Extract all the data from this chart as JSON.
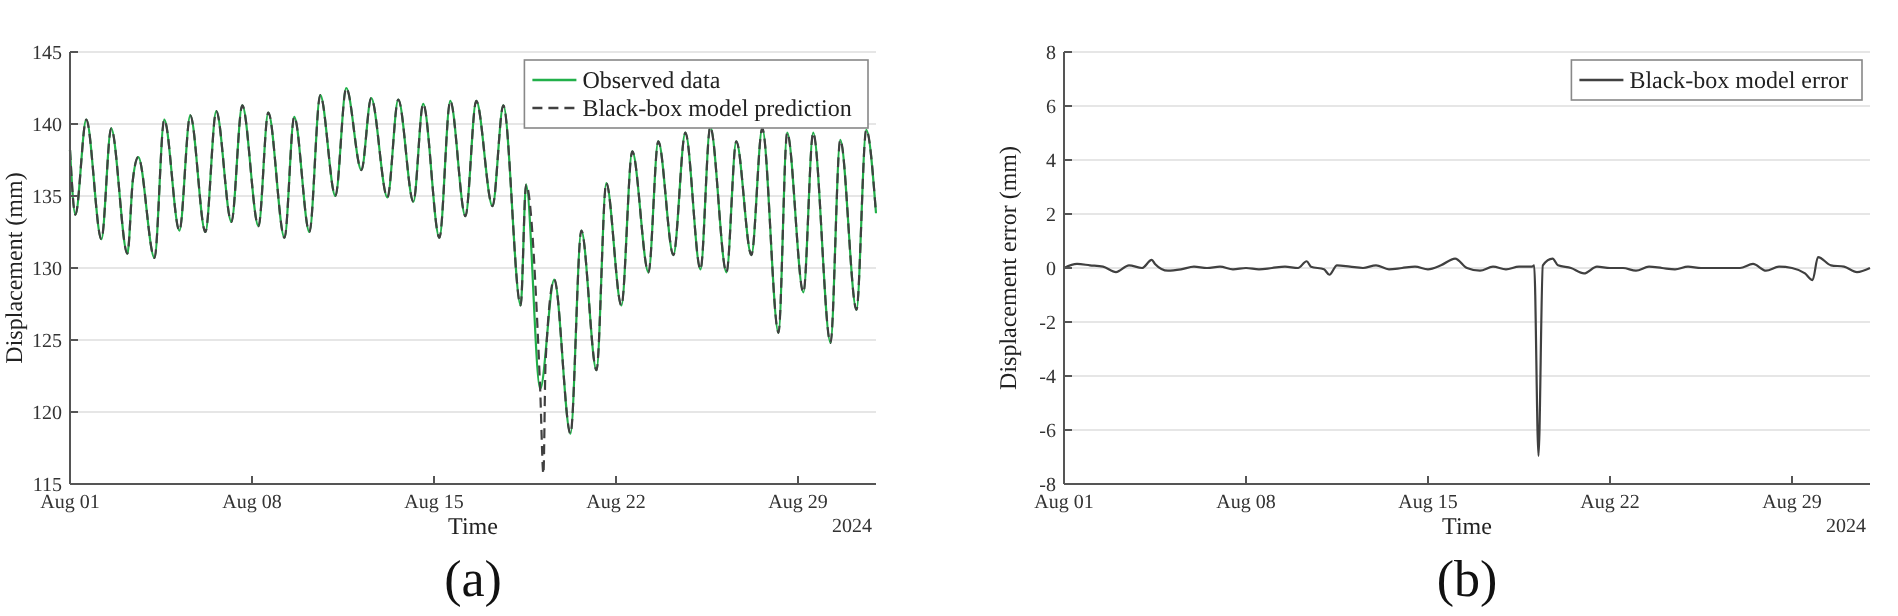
{
  "chart_data": [
    {
      "type": "line",
      "title": "(a)",
      "xlabel": "Time",
      "ylabel": "Displacement (mm)",
      "annotations": [
        "2024"
      ],
      "xlim": [
        "2024-08-01",
        "2024-09-01"
      ],
      "xticks": [
        {
          "value": "2024-08-01",
          "label": "Aug 01"
        },
        {
          "value": "2024-08-08",
          "label": "Aug 08"
        },
        {
          "value": "2024-08-15",
          "label": "Aug 15"
        },
        {
          "value": "2024-08-22",
          "label": "Aug 22"
        },
        {
          "value": "2024-08-29",
          "label": "Aug 29"
        }
      ],
      "ylim": [
        115,
        145
      ],
      "yticks": [
        115,
        120,
        125,
        130,
        135,
        140,
        145
      ],
      "grid": "y",
      "legend": "top right",
      "series": [
        {
          "name": "Observed data",
          "color": "#22b04a",
          "line_style": "solid",
          "x": [
            "2024-08-01T00:00",
            "2024-08-01T05:00",
            "2024-08-01T15:00",
            "2024-08-02T05:00",
            "2024-08-02T14:00",
            "2024-08-03T05:00",
            "2024-08-03T10:00",
            "2024-08-03T15:00",
            "2024-08-04T06:00",
            "2024-08-04T15:00",
            "2024-08-05T05:00",
            "2024-08-05T15:00",
            "2024-08-06T05:00",
            "2024-08-06T15:00",
            "2024-08-07T05:00",
            "2024-08-07T15:00",
            "2024-08-08T06:00",
            "2024-08-08T15:00",
            "2024-08-09T06:00",
            "2024-08-09T15:00",
            "2024-08-10T05:00",
            "2024-08-10T15:00",
            "2024-08-11T05:00",
            "2024-08-11T15:00",
            "2024-08-12T05:00",
            "2024-08-12T14:00",
            "2024-08-13T05:00",
            "2024-08-13T15:00",
            "2024-08-14T05:00",
            "2024-08-14T14:00",
            "2024-08-15T05:00",
            "2024-08-15T15:00",
            "2024-08-16T05:00",
            "2024-08-16T15:00",
            "2024-08-17T06:00",
            "2024-08-17T16:00",
            "2024-08-18T08:00",
            "2024-08-18T13:00",
            "2024-08-19T02:00",
            "2024-08-19T15:00",
            "2024-08-20T06:00",
            "2024-08-20T16:00",
            "2024-08-21T06:00",
            "2024-08-21T15:00",
            "2024-08-22T05:00",
            "2024-08-22T15:00",
            "2024-08-23T06:00",
            "2024-08-23T15:00",
            "2024-08-24T05:00",
            "2024-08-24T16:00",
            "2024-08-25T06:00",
            "2024-08-25T15:00",
            "2024-08-26T06:00",
            "2024-08-26T15:00",
            "2024-08-27T05:00",
            "2024-08-27T15:00",
            "2024-08-28T06:00",
            "2024-08-28T14:00",
            "2024-08-29T05:00",
            "2024-08-29T14:00",
            "2024-08-30T06:00",
            "2024-08-30T15:00",
            "2024-08-31T06:00",
            "2024-08-31T15:00",
            "2024-09-01T00:00"
          ],
          "values": [
            138.2,
            133.7,
            140.3,
            132.0,
            139.7,
            131.0,
            136.1,
            137.7,
            130.7,
            140.3,
            132.6,
            140.6,
            132.5,
            140.9,
            133.2,
            141.3,
            132.9,
            140.8,
            132.1,
            140.5,
            132.5,
            142.0,
            135.0,
            142.5,
            136.8,
            141.8,
            134.9,
            141.7,
            134.6,
            141.4,
            132.1,
            141.6,
            133.6,
            141.6,
            134.3,
            141.3,
            127.4,
            135.8,
            121.6,
            129.2,
            118.5,
            132.6,
            122.9,
            135.9,
            127.4,
            138.1,
            129.7,
            138.8,
            130.9,
            139.4,
            129.9,
            139.8,
            129.7,
            138.8,
            130.9,
            139.7,
            125.5,
            139.4,
            128.3,
            139.4,
            124.8,
            138.9,
            127.1,
            139.6,
            133.8
          ]
        },
        {
          "name": "Black-box model prediction",
          "color": "#404040",
          "line_style": "dashed",
          "x": [
            "2024-08-01T00:00",
            "2024-08-01T05:00",
            "2024-08-01T15:00",
            "2024-08-02T05:00",
            "2024-08-02T14:00",
            "2024-08-03T05:00",
            "2024-08-03T10:00",
            "2024-08-03T15:00",
            "2024-08-04T06:00",
            "2024-08-04T15:00",
            "2024-08-05T05:00",
            "2024-08-05T15:00",
            "2024-08-06T05:00",
            "2024-08-06T15:00",
            "2024-08-07T05:00",
            "2024-08-07T15:00",
            "2024-08-08T06:00",
            "2024-08-08T15:00",
            "2024-08-09T06:00",
            "2024-08-09T15:00",
            "2024-08-10T05:00",
            "2024-08-10T15:00",
            "2024-08-11T05:00",
            "2024-08-11T15:00",
            "2024-08-12T05:00",
            "2024-08-12T14:00",
            "2024-08-13T05:00",
            "2024-08-13T15:00",
            "2024-08-14T05:00",
            "2024-08-14T14:00",
            "2024-08-15T05:00",
            "2024-08-15T15:00",
            "2024-08-16T05:00",
            "2024-08-16T15:00",
            "2024-08-17T06:00",
            "2024-08-17T16:00",
            "2024-08-18T08:00",
            "2024-08-18T13:00",
            "2024-08-19T02:00",
            "2024-08-19T05:00",
            "2024-08-19T07:00",
            "2024-08-19T15:00",
            "2024-08-20T06:00",
            "2024-08-20T16:00",
            "2024-08-21T06:00",
            "2024-08-21T15:00",
            "2024-08-22T05:00",
            "2024-08-22T15:00",
            "2024-08-23T06:00",
            "2024-08-23T15:00",
            "2024-08-24T05:00",
            "2024-08-24T16:00",
            "2024-08-25T06:00",
            "2024-08-25T15:00",
            "2024-08-26T06:00",
            "2024-08-26T15:00",
            "2024-08-27T05:00",
            "2024-08-27T15:00",
            "2024-08-28T06:00",
            "2024-08-28T14:00",
            "2024-08-29T05:00",
            "2024-08-29T14:00",
            "2024-08-30T06:00",
            "2024-08-30T15:00",
            "2024-08-31T06:00",
            "2024-08-31T15:00",
            "2024-09-01T00:00"
          ],
          "values": [
            138.2,
            133.7,
            140.3,
            132.0,
            139.7,
            131.0,
            136.1,
            137.7,
            130.7,
            140.3,
            132.6,
            140.6,
            132.5,
            140.9,
            133.2,
            141.3,
            132.9,
            140.8,
            132.1,
            140.5,
            132.5,
            142.0,
            135.0,
            142.5,
            136.8,
            141.8,
            134.9,
            141.7,
            134.6,
            141.4,
            132.1,
            141.6,
            133.6,
            141.6,
            134.3,
            141.3,
            127.4,
            135.8,
            121.6,
            115.7,
            123.5,
            129.2,
            118.5,
            132.6,
            122.9,
            135.9,
            127.4,
            138.1,
            129.7,
            138.8,
            130.9,
            139.4,
            129.9,
            139.8,
            129.7,
            138.8,
            130.9,
            139.7,
            125.5,
            139.4,
            128.3,
            139.4,
            124.8,
            138.9,
            127.1,
            139.6,
            133.8
          ]
        }
      ]
    },
    {
      "type": "line",
      "title": "(b)",
      "xlabel": "Time",
      "ylabel": "Displacement error (mm)",
      "annotations": [
        "2024"
      ],
      "xlim": [
        "2024-08-01",
        "2024-09-01"
      ],
      "xticks": [
        {
          "value": "2024-08-01",
          "label": "Aug 01"
        },
        {
          "value": "2024-08-08",
          "label": "Aug 08"
        },
        {
          "value": "2024-08-15",
          "label": "Aug 15"
        },
        {
          "value": "2024-08-22",
          "label": "Aug 22"
        },
        {
          "value": "2024-08-29",
          "label": "Aug 29"
        }
      ],
      "ylim": [
        -8,
        8
      ],
      "yticks": [
        -8,
        -6,
        -4,
        -2,
        0,
        2,
        4,
        6,
        8
      ],
      "grid": "y",
      "legend": "top right",
      "series": [
        {
          "name": "Black-box model error",
          "color": "#404040",
          "line_style": "solid",
          "x": [
            "2024-08-01T00:00",
            "2024-08-01T12:00",
            "2024-08-02T00:00",
            "2024-08-02T12:00",
            "2024-08-03T00:00",
            "2024-08-03T12:00",
            "2024-08-04T00:00",
            "2024-08-04T09:00",
            "2024-08-04T12:00",
            "2024-08-05T00:00",
            "2024-08-05T12:00",
            "2024-08-06T00:00",
            "2024-08-06T12:00",
            "2024-08-07T00:00",
            "2024-08-07T12:00",
            "2024-08-08T00:00",
            "2024-08-08T12:00",
            "2024-08-09T00:00",
            "2024-08-09T12:00",
            "2024-08-10T00:00",
            "2024-08-10T08:00",
            "2024-08-10T12:00",
            "2024-08-11T00:00",
            "2024-08-11T05:00",
            "2024-08-11T12:00",
            "2024-08-12T00:00",
            "2024-08-12T12:00",
            "2024-08-13T00:00",
            "2024-08-13T12:00",
            "2024-08-14T00:00",
            "2024-08-14T12:00",
            "2024-08-15T00:00",
            "2024-08-15T12:00",
            "2024-08-16T01:00",
            "2024-08-16T12:00",
            "2024-08-17T00:00",
            "2024-08-17T12:00",
            "2024-08-18T00:00",
            "2024-08-18T12:00",
            "2024-08-19T00:00",
            "2024-08-19T02:00",
            "2024-08-19T06:00",
            "2024-08-19T10:00",
            "2024-08-19T19:00",
            "2024-08-20T00:00",
            "2024-08-20T12:00",
            "2024-08-21T00:00",
            "2024-08-21T12:00",
            "2024-08-22T00:00",
            "2024-08-22T12:00",
            "2024-08-23T00:00",
            "2024-08-23T12:00",
            "2024-08-24T00:00",
            "2024-08-24T12:00",
            "2024-08-25T00:00",
            "2024-08-25T12:00",
            "2024-08-26T00:00",
            "2024-08-26T12:00",
            "2024-08-27T00:00",
            "2024-08-27T12:00",
            "2024-08-28T00:00",
            "2024-08-28T12:00",
            "2024-08-29T00:00",
            "2024-08-29T12:00",
            "2024-08-29T19:00",
            "2024-08-30T00:00",
            "2024-08-30T12:00",
            "2024-08-31T00:00",
            "2024-08-31T12:00",
            "2024-09-01T00:00"
          ],
          "values": [
            0.0,
            0.15,
            0.1,
            0.05,
            -0.15,
            0.1,
            0.0,
            0.3,
            0.15,
            -0.1,
            -0.05,
            0.05,
            0.0,
            0.05,
            -0.05,
            0.0,
            -0.05,
            0.0,
            0.05,
            0.0,
            0.25,
            0.05,
            -0.05,
            -0.25,
            0.1,
            0.05,
            0.0,
            0.1,
            -0.05,
            0.0,
            0.05,
            -0.05,
            0.1,
            0.35,
            0.0,
            -0.1,
            0.05,
            -0.05,
            0.05,
            0.05,
            0.1,
            -6.96,
            0.1,
            0.35,
            0.1,
            0.0,
            -0.2,
            0.05,
            0.0,
            0.0,
            -0.1,
            0.05,
            0.0,
            -0.05,
            0.05,
            0.0,
            0.0,
            0.0,
            0.0,
            0.15,
            -0.1,
            0.05,
            0.0,
            -0.2,
            -0.45,
            0.4,
            0.1,
            0.05,
            -0.15,
            0.0
          ]
        }
      ]
    }
  ]
}
